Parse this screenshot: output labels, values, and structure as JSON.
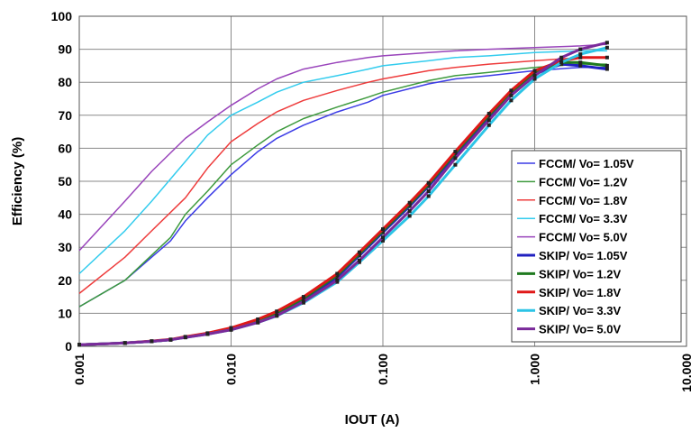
{
  "chart_data": {
    "type": "line",
    "xlabel": "IOUT (A)",
    "ylabel": "Efficiency (%)",
    "x_scale": "log",
    "xlim": [
      0.001,
      10
    ],
    "ylim": [
      0,
      100
    ],
    "x_ticks": [
      "0.001",
      "0.010",
      "0.100",
      "1.000",
      "10.000"
    ],
    "y_ticks": [
      "0",
      "10",
      "20",
      "30",
      "40",
      "50",
      "60",
      "70",
      "80",
      "90",
      "100"
    ],
    "grid": true,
    "legend_position": "right",
    "series": [
      {
        "name": "FCCM/ Vo= 1.05V",
        "color": "#3b3be6",
        "width": 1.5,
        "markers": false,
        "x": [
          0.001,
          0.002,
          0.004,
          0.005,
          0.007,
          0.01,
          0.015,
          0.02,
          0.03,
          0.05,
          0.08,
          0.1,
          0.2,
          0.3,
          0.5,
          1,
          2,
          3
        ],
        "y": [
          12,
          20,
          32,
          38,
          45,
          52,
          59,
          63,
          67,
          71,
          74,
          76,
          79.5,
          81,
          82,
          83.5,
          84.5,
          84.5
        ]
      },
      {
        "name": "FCCM/ Vo= 1.2V",
        "color": "#3d9a3d",
        "width": 1.5,
        "markers": false,
        "x": [
          0.001,
          0.002,
          0.004,
          0.005,
          0.007,
          0.01,
          0.015,
          0.02,
          0.03,
          0.05,
          0.08,
          0.1,
          0.2,
          0.3,
          0.5,
          1,
          2,
          3
        ],
        "y": [
          12,
          20,
          33,
          40,
          47,
          55,
          61,
          65,
          69,
          72.5,
          75.5,
          77,
          80.5,
          82,
          83,
          84.5,
          85.5,
          85.5
        ]
      },
      {
        "name": "FCCM/ Vo= 1.8V",
        "color": "#ee3c3c",
        "width": 1.5,
        "markers": false,
        "x": [
          0.001,
          0.002,
          0.003,
          0.005,
          0.007,
          0.01,
          0.015,
          0.02,
          0.03,
          0.05,
          0.08,
          0.1,
          0.2,
          0.3,
          0.5,
          1,
          2,
          3
        ],
        "y": [
          16,
          27,
          35,
          45,
          54,
          62,
          67.5,
          71,
          74.5,
          77.5,
          80,
          81,
          83.5,
          84.5,
          85.5,
          86.5,
          87.5,
          87.5
        ]
      },
      {
        "name": "FCCM/ Vo= 3.3V",
        "color": "#33ccee",
        "width": 1.5,
        "markers": false,
        "x": [
          0.001,
          0.002,
          0.003,
          0.005,
          0.007,
          0.01,
          0.015,
          0.02,
          0.03,
          0.05,
          0.08,
          0.1,
          0.2,
          0.3,
          0.5,
          1,
          2,
          3
        ],
        "y": [
          22,
          35,
          44,
          56,
          64,
          70,
          74,
          77,
          80,
          82,
          84,
          85,
          86.5,
          87.5,
          88,
          89,
          89.5,
          89.5
        ]
      },
      {
        "name": "FCCM/ Vo= 5.0V",
        "color": "#9944bb",
        "width": 1.5,
        "markers": false,
        "x": [
          0.001,
          0.002,
          0.003,
          0.005,
          0.007,
          0.01,
          0.015,
          0.02,
          0.03,
          0.05,
          0.08,
          0.1,
          0.2,
          0.3,
          0.5,
          1,
          2,
          3
        ],
        "y": [
          29,
          44,
          53,
          63,
          68,
          73,
          78,
          81,
          84,
          86,
          87.5,
          88,
          89,
          89.5,
          90,
          90.5,
          91,
          91.5
        ]
      },
      {
        "name": "SKIP/ Vo= 1.05V",
        "color": "#2020c0",
        "width": 3,
        "markers": true,
        "x": [
          0.001,
          0.002,
          0.003,
          0.004,
          0.005,
          0.007,
          0.01,
          0.015,
          0.02,
          0.03,
          0.05,
          0.07,
          0.1,
          0.15,
          0.2,
          0.3,
          0.5,
          0.7,
          1,
          1.5,
          2,
          3
        ],
        "y": [
          0.5,
          1,
          1.5,
          2,
          2.8,
          3.8,
          5.2,
          7.5,
          9.8,
          14,
          21,
          27.5,
          34.5,
          42.5,
          48.5,
          58,
          69.5,
          76.5,
          82.5,
          85.5,
          85,
          84
        ]
      },
      {
        "name": "SKIP/ Vo= 1.2V",
        "color": "#1f7a1f",
        "width": 3,
        "markers": true,
        "x": [
          0.001,
          0.002,
          0.003,
          0.004,
          0.005,
          0.007,
          0.01,
          0.015,
          0.02,
          0.03,
          0.05,
          0.07,
          0.1,
          0.15,
          0.2,
          0.3,
          0.5,
          0.7,
          1,
          1.5,
          2,
          3
        ],
        "y": [
          0.5,
          1,
          1.5,
          2,
          2.8,
          3.8,
          5.4,
          7.8,
          10.2,
          14.5,
          21.5,
          28,
          35,
          43,
          49,
          58.5,
          70,
          77,
          83,
          86,
          86,
          85
        ]
      },
      {
        "name": "SKIP/ Vo= 1.8V",
        "color": "#e01818",
        "width": 3,
        "markers": true,
        "x": [
          0.001,
          0.002,
          0.003,
          0.004,
          0.005,
          0.007,
          0.01,
          0.015,
          0.02,
          0.03,
          0.05,
          0.07,
          0.1,
          0.15,
          0.2,
          0.3,
          0.5,
          0.7,
          1,
          1.5,
          2,
          3
        ],
        "y": [
          0.5,
          1,
          1.6,
          2.1,
          2.9,
          4,
          5.6,
          8.2,
          10.6,
          15,
          22,
          28.5,
          35.5,
          43.5,
          49.5,
          59,
          70.5,
          77.5,
          83.5,
          86.5,
          87.5,
          87.5
        ]
      },
      {
        "name": "SKIP/ Vo= 3.3V",
        "color": "#2cc4e6",
        "width": 3,
        "markers": true,
        "x": [
          0.001,
          0.002,
          0.003,
          0.004,
          0.005,
          0.007,
          0.01,
          0.015,
          0.02,
          0.03,
          0.05,
          0.07,
          0.1,
          0.15,
          0.2,
          0.3,
          0.5,
          0.7,
          1,
          1.5,
          2,
          3
        ],
        "y": [
          0.5,
          1,
          1.5,
          2,
          2.7,
          3.7,
          5,
          7.2,
          9.2,
          13.2,
          19.5,
          25.5,
          32,
          39.5,
          45.5,
          55,
          67,
          74.5,
          81,
          86,
          88.5,
          90.5
        ]
      },
      {
        "name": "SKIP/ Vo= 5.0V",
        "color": "#7a2a9a",
        "width": 3,
        "markers": true,
        "x": [
          0.001,
          0.002,
          0.003,
          0.004,
          0.005,
          0.007,
          0.01,
          0.015,
          0.02,
          0.03,
          0.05,
          0.07,
          0.1,
          0.15,
          0.2,
          0.3,
          0.5,
          0.7,
          1,
          1.5,
          2,
          3
        ],
        "y": [
          0.5,
          1,
          1.5,
          2,
          2.7,
          3.7,
          5,
          7.2,
          9.3,
          13.5,
          20,
          26,
          33,
          41,
          47,
          57,
          68.5,
          76,
          82,
          87.5,
          90,
          92
        ]
      }
    ]
  }
}
